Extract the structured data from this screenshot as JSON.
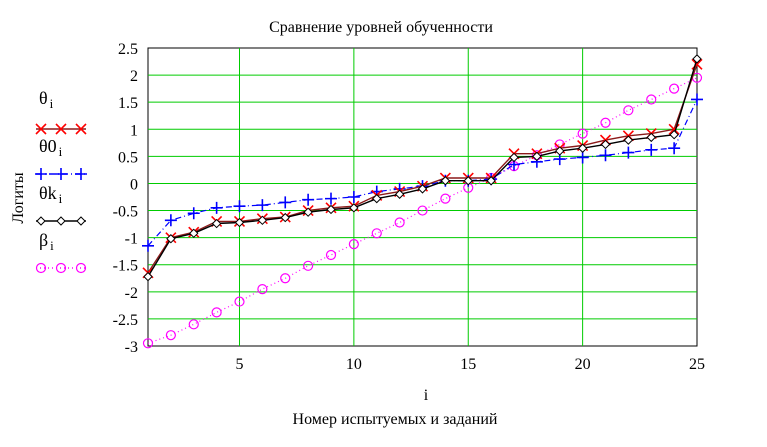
{
  "chart_data": {
    "type": "line",
    "title": "Сравнение уровней обученности",
    "xlabel": "Номер  испытуемых и заданий",
    "xlabel_symbol": "i",
    "ylabel": "Логиты",
    "xlim": [
      1,
      25
    ],
    "ylim": [
      -3,
      2.5
    ],
    "x_ticks": [
      5,
      10,
      15,
      20,
      25
    ],
    "x_tick_labels": [
      "5",
      "10",
      "15",
      "20",
      "25"
    ],
    "y_ticks": [
      2.5,
      2,
      1.5,
      1,
      0.5,
      0,
      -0.5,
      -1,
      -1.5,
      -2,
      -2.5,
      -3
    ],
    "y_tick_labels": [
      "2.5",
      "2",
      "1.5",
      "1",
      "0.5",
      "0",
      "-0.5",
      "-1",
      "-1.5",
      "-2",
      "-2.5",
      "-3"
    ],
    "grid": true,
    "grid_color": "#00cc00",
    "legend_position": "left",
    "x": [
      1,
      2,
      3,
      4,
      5,
      6,
      7,
      8,
      9,
      10,
      11,
      12,
      13,
      14,
      15,
      16,
      17,
      18,
      19,
      20,
      21,
      22,
      23,
      24,
      25
    ],
    "series": [
      {
        "name": "θ",
        "subscript": "i",
        "color": "#8b1a1a",
        "marker": "x",
        "marker_color": "#ff0000",
        "line": "solid",
        "values": [
          -1.65,
          -1.0,
          -0.9,
          -0.7,
          -0.7,
          -0.65,
          -0.62,
          -0.5,
          -0.45,
          -0.42,
          -0.22,
          -0.15,
          -0.05,
          0.1,
          0.1,
          0.1,
          0.55,
          0.55,
          0.65,
          0.7,
          0.8,
          0.88,
          0.92,
          1.0,
          2.2
        ]
      },
      {
        "name": "θ0",
        "subscript": "i",
        "color": "#0000ff",
        "marker": "+",
        "marker_color": "#0000ff",
        "line": "dashdot",
        "values": [
          -1.15,
          -0.68,
          -0.55,
          -0.45,
          -0.42,
          -0.4,
          -0.35,
          -0.3,
          -0.28,
          -0.25,
          -0.15,
          -0.1,
          -0.05,
          0.05,
          0.05,
          0.08,
          0.35,
          0.4,
          0.45,
          0.48,
          0.52,
          0.57,
          0.62,
          0.65,
          1.55
        ]
      },
      {
        "name": "θk",
        "subscript": "i",
        "color": "#000000",
        "marker": "diamond",
        "marker_color": "#000000",
        "line": "solid",
        "values": [
          -1.72,
          -1.02,
          -0.92,
          -0.74,
          -0.72,
          -0.68,
          -0.63,
          -0.53,
          -0.48,
          -0.45,
          -0.28,
          -0.2,
          -0.1,
          0.05,
          0.05,
          0.05,
          0.48,
          0.5,
          0.6,
          0.65,
          0.72,
          0.8,
          0.85,
          0.9,
          2.3
        ]
      },
      {
        "name": "β",
        "subscript": "i",
        "color": "#ff00ff",
        "marker": "circle",
        "marker_color": "#ff00ff",
        "line": "dotted",
        "values": [
          -2.95,
          -2.8,
          -2.6,
          -2.38,
          -2.18,
          -1.95,
          -1.75,
          -1.52,
          -1.32,
          -1.12,
          -0.92,
          -0.72,
          -0.5,
          -0.28,
          -0.08,
          0.1,
          0.32,
          0.52,
          0.72,
          0.92,
          1.12,
          1.35,
          1.55,
          1.75,
          1.95
        ]
      }
    ]
  }
}
